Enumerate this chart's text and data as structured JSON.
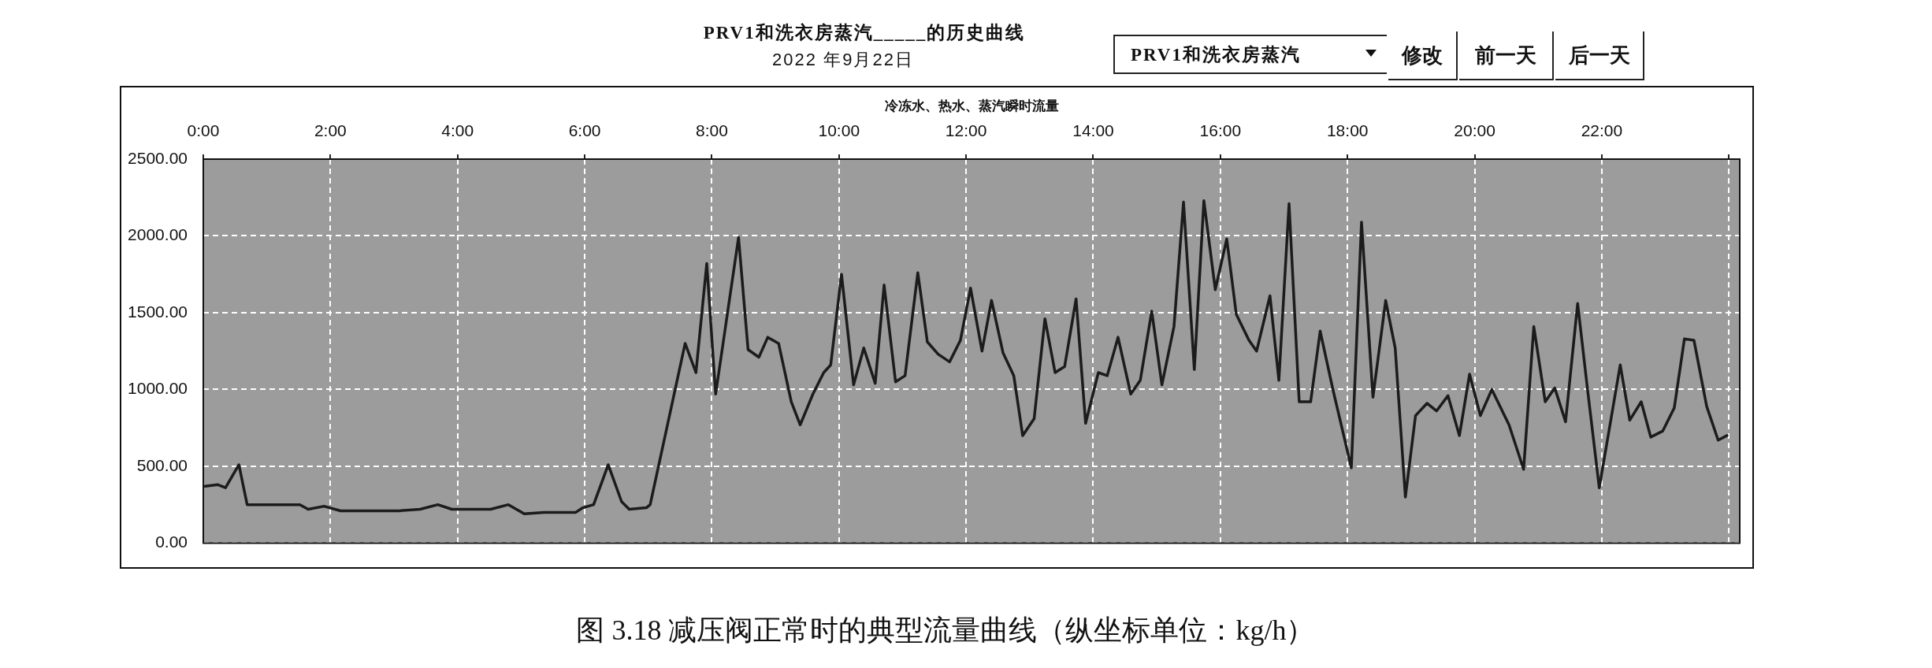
{
  "chart_data": {
    "type": "line",
    "title": "PRV1和洗衣房蒸汽_____的历史曲线",
    "subtitle": "2022 年9月22日",
    "xlabel": "冷冻水、热水、蒸汽瞬时流量",
    "annotations": [
      "PRV1和洗衣房蒸汽",
      "修改",
      "前一天",
      "后一天",
      "图 3.18 减压阀正常时的典型流量曲线（纵坐标单位：kg/h）"
    ],
    "x": [
      0.03,
      0.23,
      0.35,
      0.56,
      0.69,
      1.52,
      1.65,
      1.9,
      2.16,
      3.08,
      3.41,
      3.69,
      3.91,
      4.52,
      4.8,
      5.05,
      5.36,
      5.86,
      5.97,
      6.14,
      6.37,
      6.58,
      6.7,
      6.97,
      7.03,
      7.58,
      7.75,
      7.92,
      8.06,
      8.42,
      8.57,
      8.74,
      8.88,
      9.05,
      9.25,
      9.39,
      9.59,
      9.76,
      9.87,
      10.04,
      10.23,
      10.39,
      10.57,
      10.71,
      10.89,
      11.04,
      11.24,
      11.39,
      11.56,
      11.74,
      11.91,
      12.07,
      12.25,
      12.4,
      12.58,
      12.75,
      12.89,
      13.07,
      13.24,
      13.4,
      13.55,
      13.73,
      13.88,
      14.08,
      14.22,
      14.39,
      14.59,
      14.74,
      14.92,
      15.08,
      15.27,
      15.42,
      15.59,
      15.74,
      15.92,
      16.1,
      16.25,
      16.45,
      16.57,
      16.78,
      16.92,
      17.08,
      17.24,
      17.42,
      17.57,
      17.77,
      18.06,
      18.22,
      18.4,
      18.6,
      18.75,
      18.91,
      19.07,
      19.25,
      19.4,
      19.58,
      19.76,
      19.92,
      20.09,
      20.27,
      20.54,
      20.77,
      20.93,
      21.11,
      21.26,
      21.43,
      21.62,
      21.77,
      21.96,
      22.29,
      22.44,
      22.62,
      22.77,
      22.96,
      23.14,
      23.3,
      23.45,
      23.65,
      23.83,
      23.97
    ],
    "values": [
      370,
      380,
      360,
      510,
      250,
      250,
      220,
      240,
      210,
      210,
      220,
      250,
      220,
      220,
      250,
      190,
      200,
      200,
      230,
      250,
      510,
      270,
      220,
      230,
      250,
      1300,
      1110,
      1820,
      970,
      1990,
      1260,
      1210,
      1340,
      1300,
      920,
      770,
      970,
      1110,
      1160,
      1750,
      1030,
      1270,
      1040,
      1680,
      1050,
      1090,
      1760,
      1310,
      1230,
      1180,
      1320,
      1660,
      1250,
      1580,
      1240,
      1090,
      700,
      810,
      1460,
      1110,
      1150,
      1590,
      780,
      1110,
      1090,
      1340,
      970,
      1060,
      1510,
      1030,
      1410,
      2220,
      1130,
      2230,
      1650,
      1980,
      1490,
      1320,
      1250,
      1610,
      1060,
      2210,
      920,
      920,
      1380,
      1000,
      490,
      2090,
      950,
      1580,
      1270,
      300,
      830,
      910,
      860,
      960,
      700,
      1100,
      830,
      1000,
      770,
      480,
      1410,
      920,
      1010,
      790,
      1560,
      1020,
      360,
      1160,
      800,
      920,
      690,
      730,
      880,
      1330,
      1320,
      890,
      670,
      700
    ],
    "color": "#1c1c1c",
    "xlim": [
      0,
      24.17
    ],
    "xticks": [
      {
        "value": 0,
        "label": "0:00"
      },
      {
        "value": 2,
        "label": "2:00"
      },
      {
        "value": 4,
        "label": "4:00"
      },
      {
        "value": 6,
        "label": "6:00"
      },
      {
        "value": 8,
        "label": "8:00"
      },
      {
        "value": 10,
        "label": "10:00"
      },
      {
        "value": 12,
        "label": "12:00"
      },
      {
        "value": 14,
        "label": "14:00"
      },
      {
        "value": 16,
        "label": "16:00"
      },
      {
        "value": 18,
        "label": "18:00"
      },
      {
        "value": 20,
        "label": "20:00"
      },
      {
        "value": 22,
        "label": "22:00"
      },
      {
        "value": 24,
        "label": null
      }
    ],
    "ylim": [
      0,
      2500
    ],
    "yticks": [
      {
        "value": 0,
        "label": "0.00"
      },
      {
        "value": 500,
        "label": "500.00"
      },
      {
        "value": 1000,
        "label": "1000.00"
      },
      {
        "value": 1500,
        "label": "1500.00"
      },
      {
        "value": 2000,
        "label": "2000.00"
      },
      {
        "value": 2500,
        "label": "2500.00"
      }
    ],
    "grid": true
  }
}
